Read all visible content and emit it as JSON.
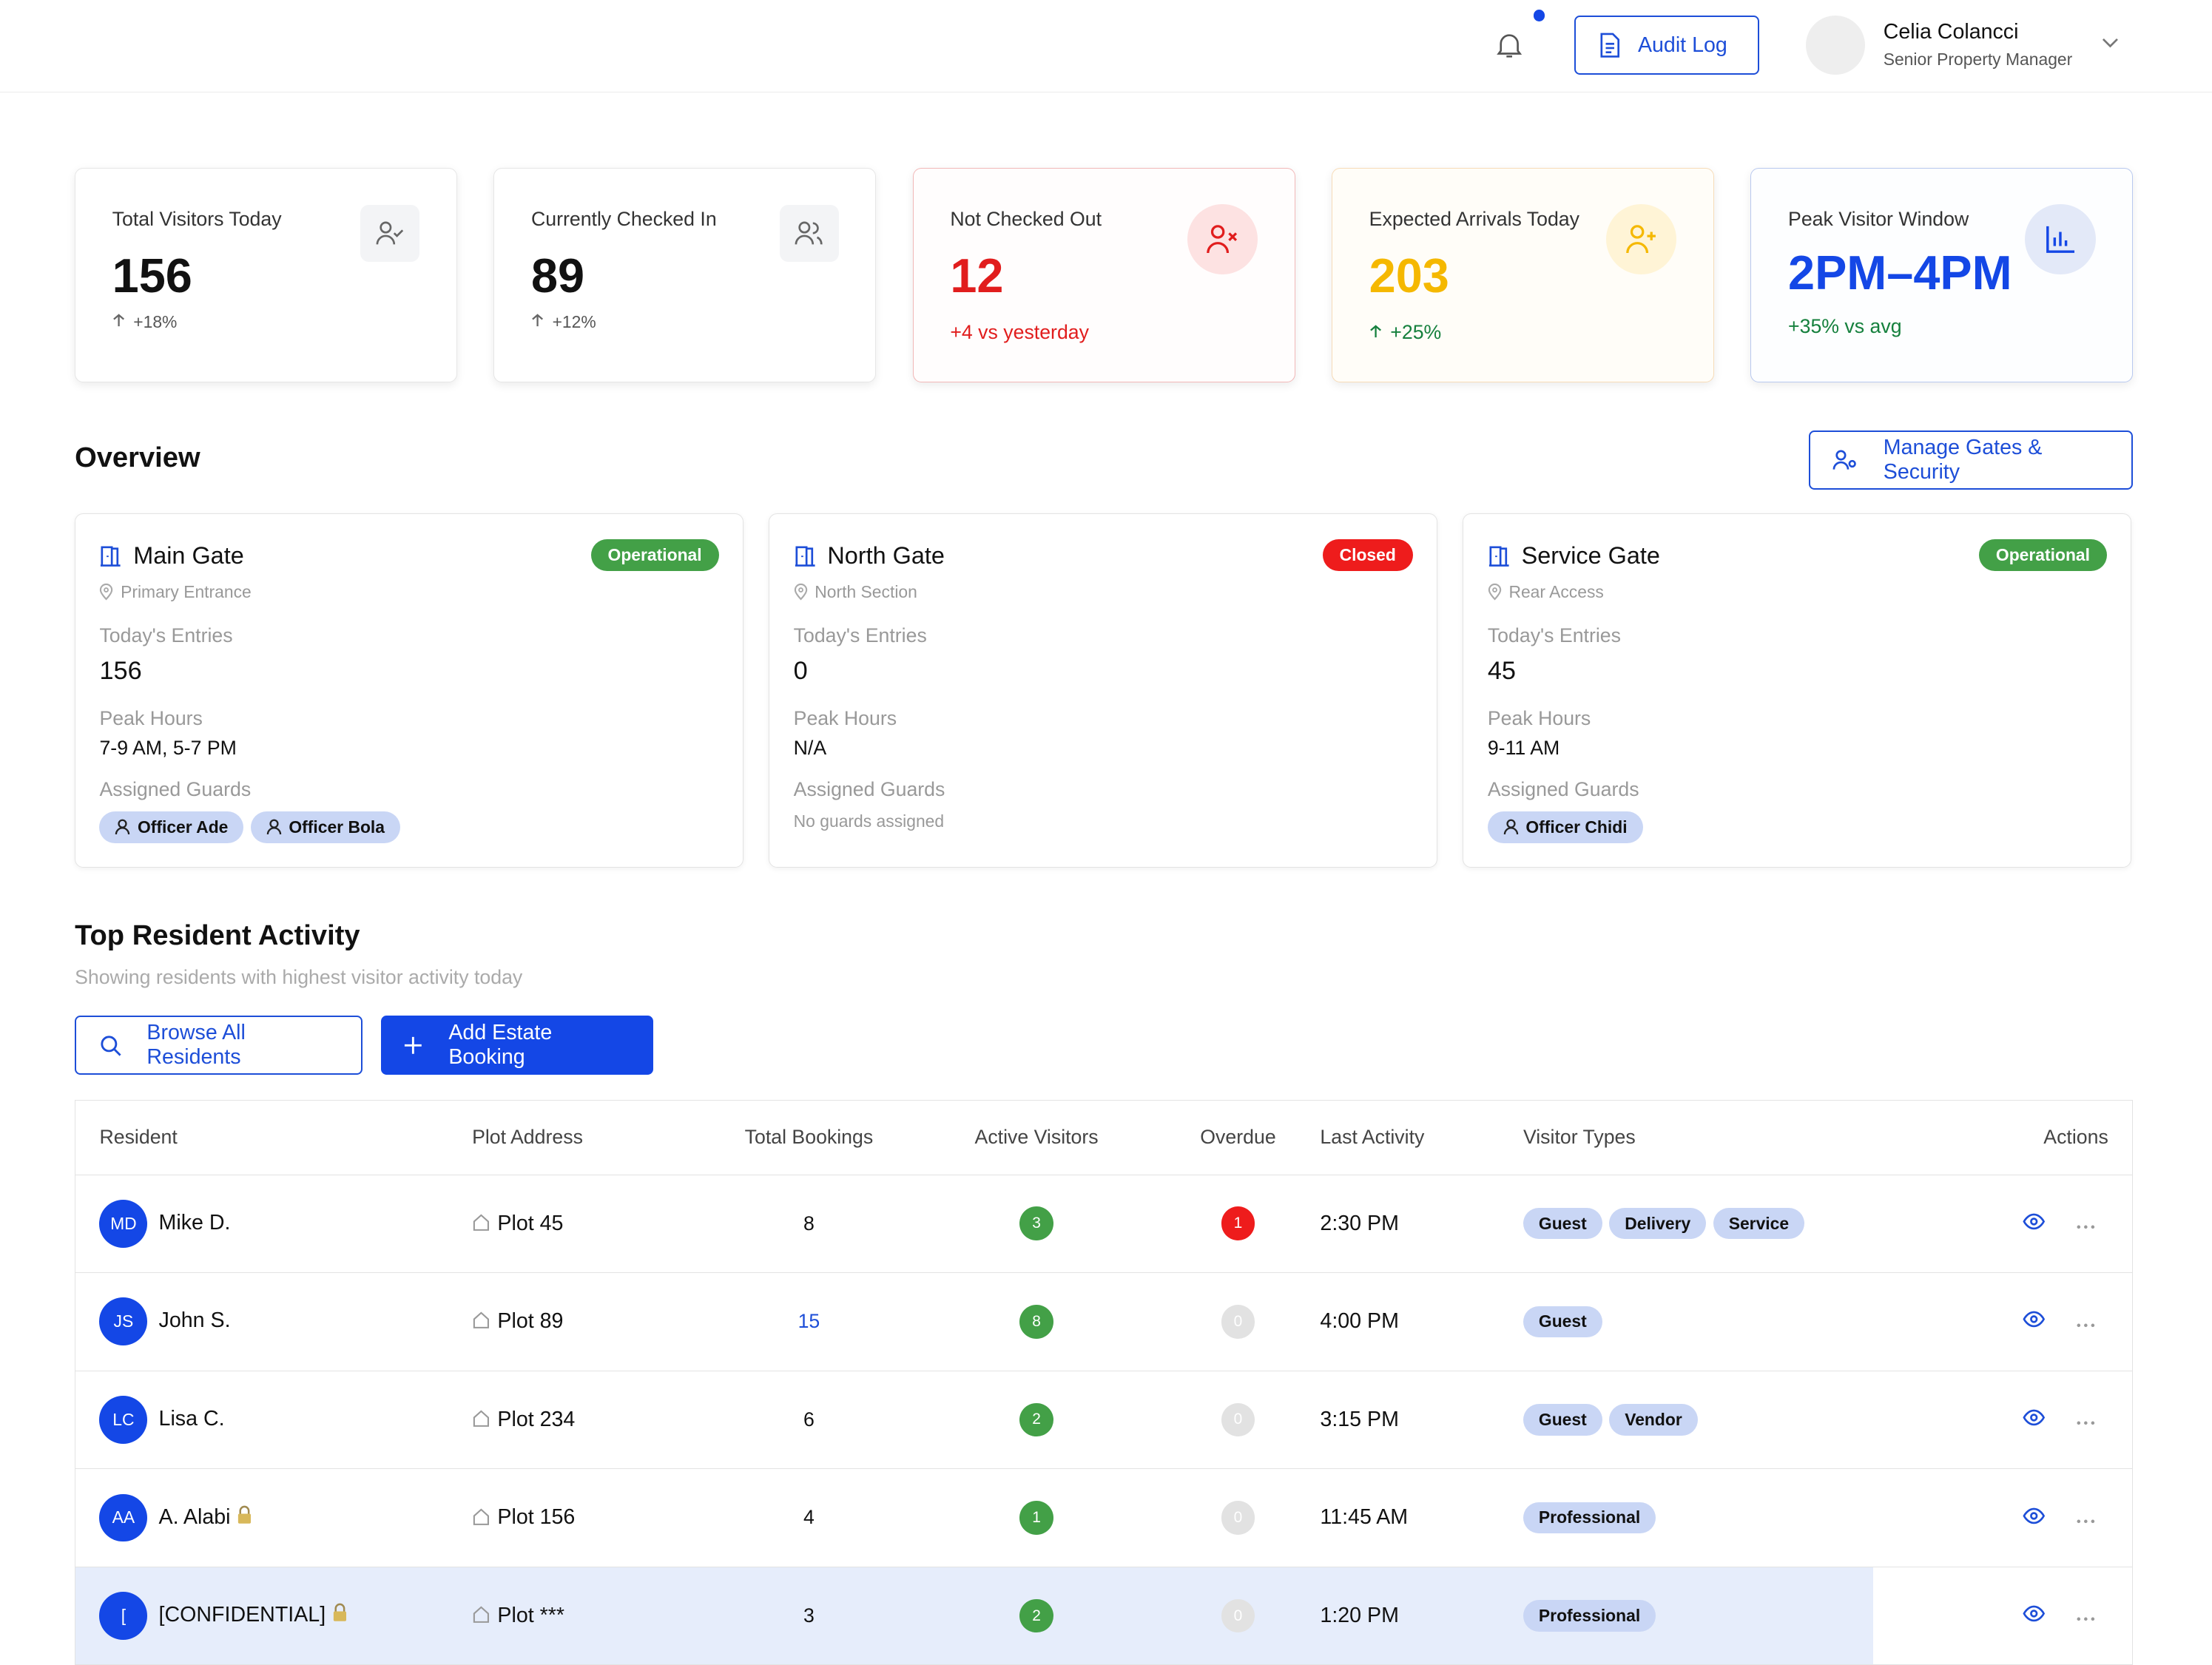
{
  "header": {
    "audit_log": "Audit Log",
    "user": {
      "name": "Celia Colancci",
      "role": "Senior Property Manager"
    }
  },
  "stats": [
    {
      "label": "Total Visitors Today",
      "value": 156,
      "change": "+18%"
    },
    {
      "label": "Currently Checked In",
      "value": 89,
      "change": "+12%"
    },
    {
      "label": "Not Checked Out",
      "value": 12,
      "change": "+4 vs yesterday"
    },
    {
      "label": "Expected Arrivals Today",
      "value": 203,
      "change": "+25%"
    },
    {
      "label": "Peak Visitor Window",
      "value": "2PM–4PM",
      "change": "+35% vs avg"
    }
  ],
  "overview": {
    "title": "Overview",
    "manage_button": "Manage Gates & Security",
    "labels": {
      "entries": "Today's Entries",
      "peak": "Peak Hours",
      "guards": "Assigned Guards"
    },
    "gates": [
      {
        "name": "Main Gate",
        "status": "Operational",
        "status_color": "#43a047",
        "location": "Primary Entrance",
        "entries": 156,
        "peak": "7-9 AM, 5-7 PM",
        "guards": [
          "Officer Ade",
          "Officer Bola"
        ]
      },
      {
        "name": "North Gate",
        "status": "Closed",
        "status_color": "#ee1c1c",
        "location": "North Section",
        "entries": 0,
        "peak": "N/A",
        "no_guards": "No guards assigned"
      },
      {
        "name": "Service Gate",
        "status": "Operational",
        "status_color": "#43a047",
        "location": "Rear Access",
        "entries": 45,
        "peak": "9-11 AM",
        "guards": [
          "Officer Chidi"
        ]
      }
    ]
  },
  "activity": {
    "title": "Top Resident Activity",
    "subtitle": "Showing residents with highest visitor activity today",
    "browse_button": "Browse All Residents",
    "add_button": "Add Estate Booking",
    "table": {
      "columns": [
        "Resident",
        "Plot Address",
        "Total Bookings",
        "Active Visitors",
        "Overdue",
        "Last Activity",
        "Visitor Types",
        "Actions"
      ],
      "rows": [
        {
          "initials": "MD",
          "name": "Mike D.",
          "plot": "Plot 45",
          "bookings": 8,
          "active": 3,
          "overdue": 1,
          "last": "2:30 PM",
          "types": [
            "Guest",
            "Delivery",
            "Service"
          ]
        },
        {
          "initials": "JS",
          "name": "John S.",
          "plot": "Plot 89",
          "bookings": 15,
          "active": 8,
          "overdue": 0,
          "last": "4:00 PM",
          "types": [
            "Guest"
          ]
        },
        {
          "initials": "LC",
          "name": "Lisa C.",
          "plot": "Plot 234",
          "bookings": 6,
          "active": 2,
          "overdue": 0,
          "last": "3:15 PM",
          "types": [
            "Guest",
            "Vendor"
          ]
        },
        {
          "initials": "AA",
          "name": "A. Alabi",
          "locked": true,
          "plot": "Plot 156",
          "bookings": 4,
          "active": 1,
          "overdue": 0,
          "last": "11:45 AM",
          "types": [
            "Professional"
          ]
        },
        {
          "initials": "[",
          "name": "[CONFIDENTIAL]",
          "locked": true,
          "plot": "Plot ***",
          "bookings": 3,
          "active": 2,
          "overdue": 0,
          "last": "1:20 PM",
          "types": [
            "Professional"
          ]
        }
      ]
    }
  }
}
